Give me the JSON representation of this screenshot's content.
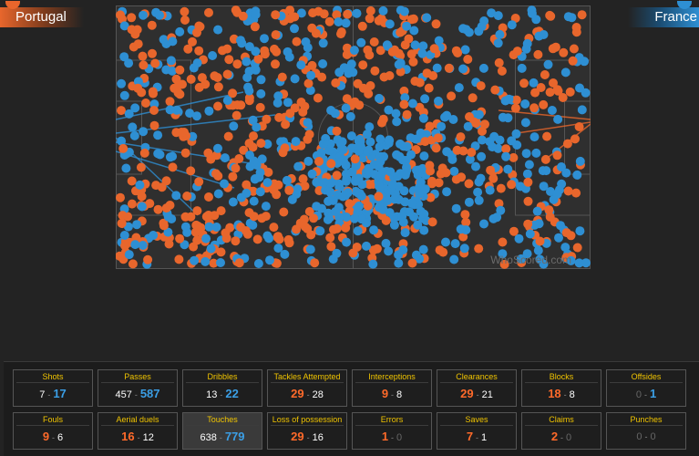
{
  "teams": {
    "home": {
      "name": "Portugal",
      "color": "#e8662c"
    },
    "away": {
      "name": "France",
      "color": "#2e8fd3"
    }
  },
  "pitch": {
    "watermark": "WhoScored.com",
    "view": "touches map"
  },
  "stats": [
    {
      "label": "Shots",
      "home": "7",
      "away": "17",
      "winner": "away"
    },
    {
      "label": "Passes",
      "home": "457",
      "away": "587",
      "winner": "away"
    },
    {
      "label": "Dribbles",
      "home": "13",
      "away": "22",
      "winner": "away"
    },
    {
      "label": "Tackles Attempted",
      "home": "29",
      "away": "28",
      "winner": "home"
    },
    {
      "label": "Interceptions",
      "home": "9",
      "away": "8",
      "winner": "home"
    },
    {
      "label": "Clearances",
      "home": "29",
      "away": "21",
      "winner": "home"
    },
    {
      "label": "Blocks",
      "home": "18",
      "away": "8",
      "winner": "home"
    },
    {
      "label": "Offsides",
      "home": "0",
      "away": "1",
      "winner": "away"
    },
    {
      "label": "Fouls",
      "home": "9",
      "away": "6",
      "winner": "home"
    },
    {
      "label": "Aerial duels",
      "home": "16",
      "away": "12",
      "winner": "home"
    },
    {
      "label": "Touches",
      "home": "638",
      "away": "779",
      "winner": "away",
      "selected": true
    },
    {
      "label": "Loss of possession",
      "home": "29",
      "away": "16",
      "winner": "home"
    },
    {
      "label": "Errors",
      "home": "1",
      "away": "0",
      "winner": "home"
    },
    {
      "label": "Saves",
      "home": "7",
      "away": "1",
      "winner": "home"
    },
    {
      "label": "Claims",
      "home": "2",
      "away": "0",
      "winner": "home"
    },
    {
      "label": "Punches",
      "home": "0",
      "away": "0",
      "winner": "none"
    }
  ]
}
